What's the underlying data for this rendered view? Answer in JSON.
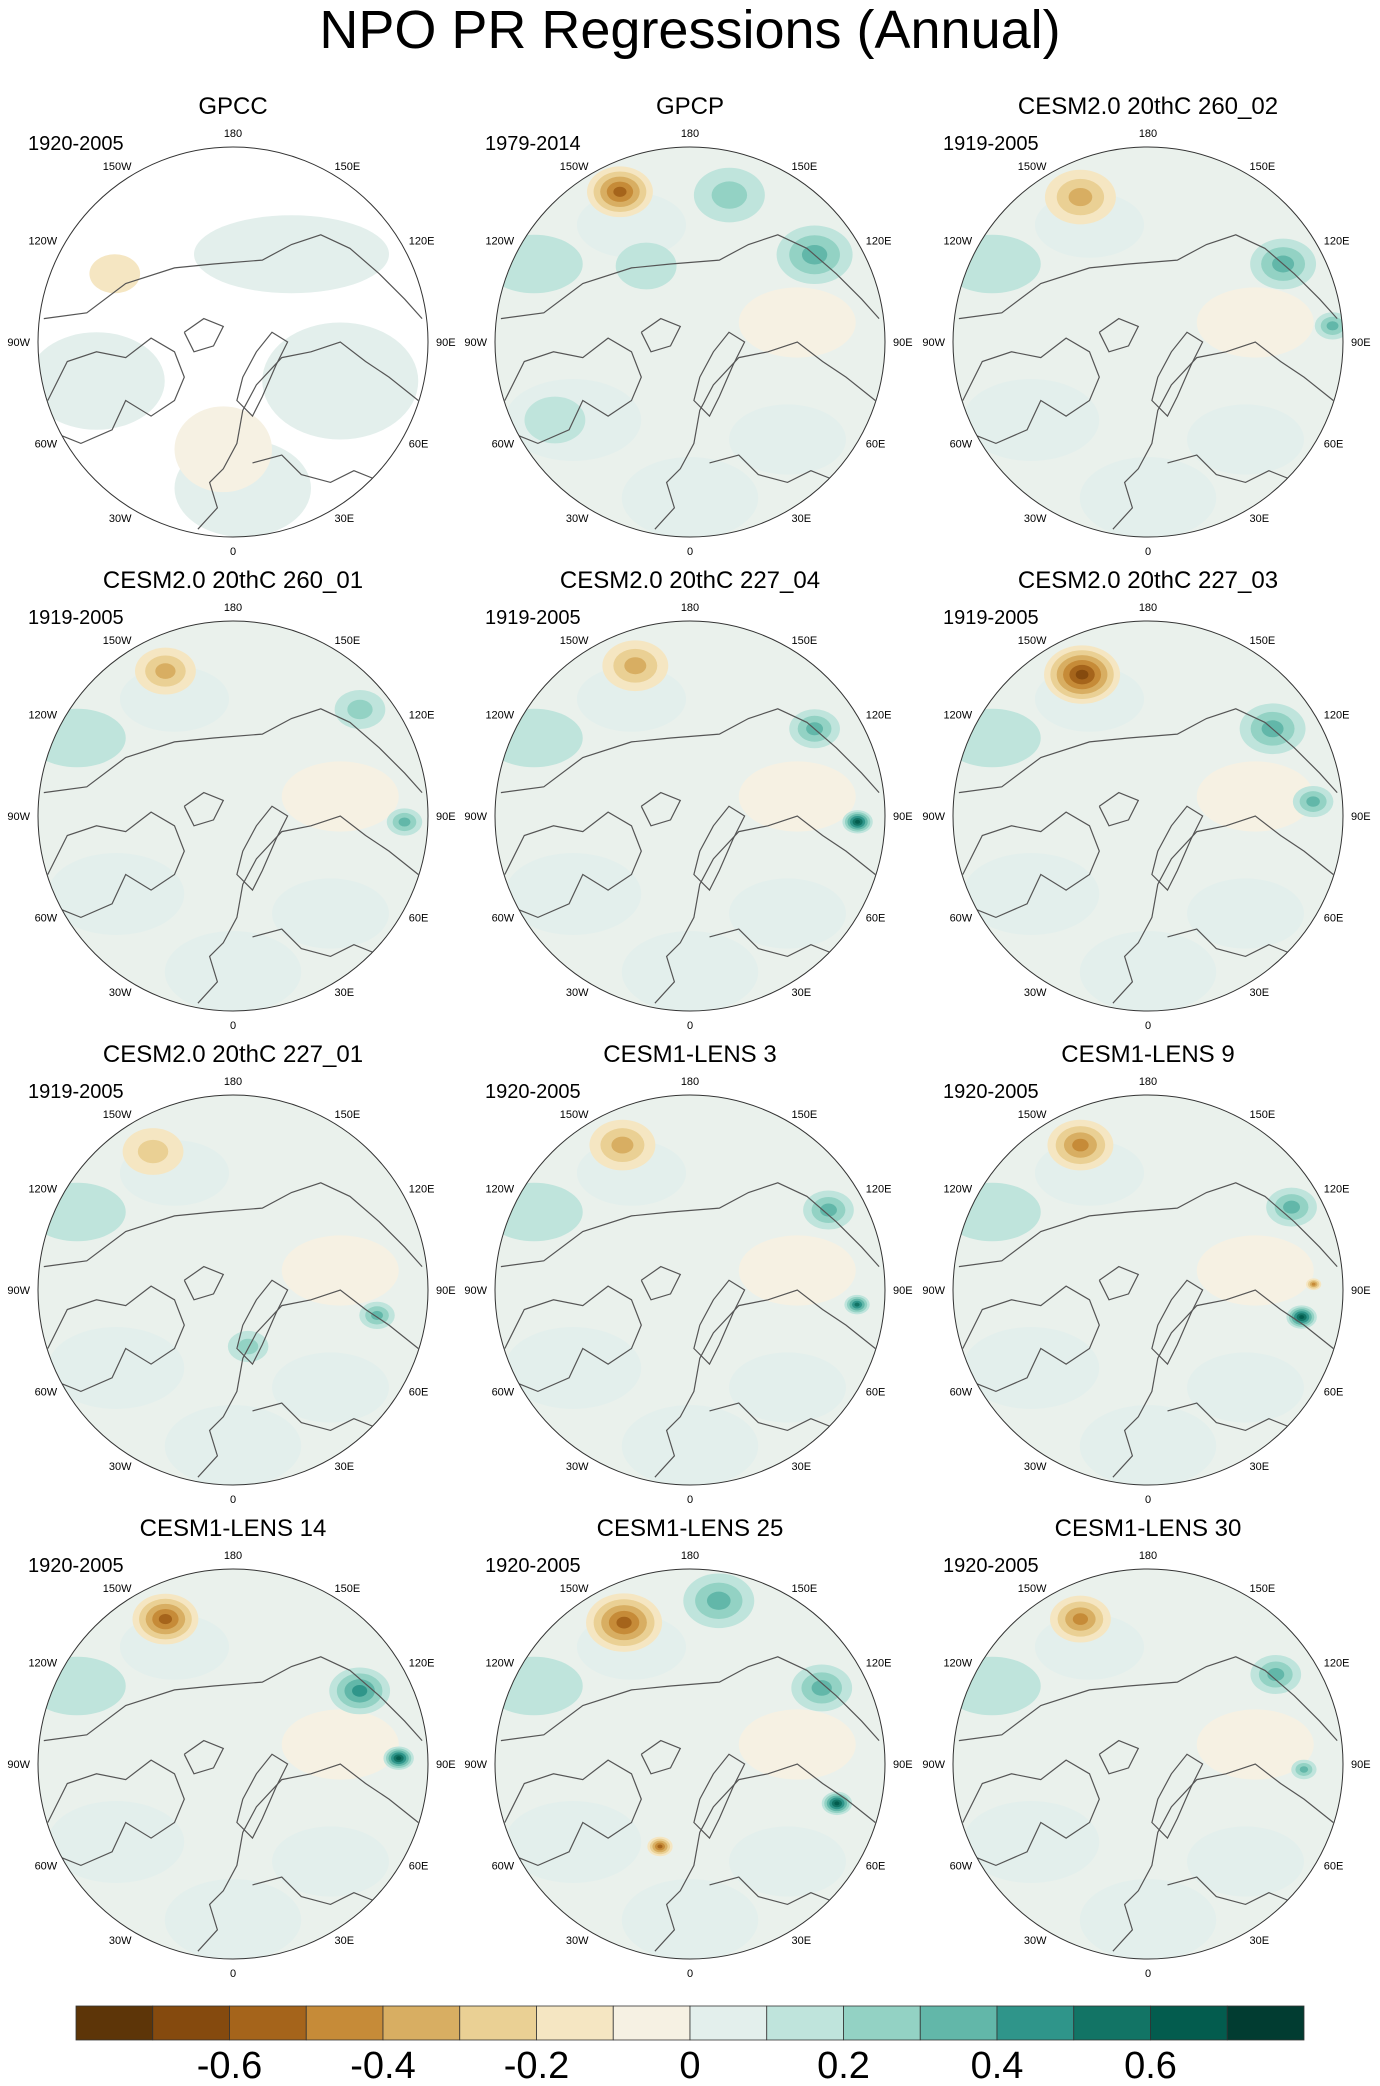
{
  "figure": {
    "title": "NPO PR Regressions (Annual)"
  },
  "longitude_labels": [
    "180",
    "150E",
    "120E",
    "90E",
    "60E",
    "30E",
    "0",
    "30W",
    "60W",
    "90W",
    "120W",
    "150W"
  ],
  "chart_data": {
    "type": "polar-contour-map-grid",
    "variable": "PR regression on NPO (annual)",
    "projection": "north polar stereographic",
    "panels": [
      {
        "title": "GPCC",
        "period": "1920-2005",
        "land_only": true,
        "features": [
          {
            "kind": "dry",
            "lon": -120,
            "r": 0.7,
            "amp": 0.05,
            "size": 0.1
          }
        ]
      },
      {
        "title": "GPCP",
        "period": "1979-2014",
        "features": [
          {
            "kind": "dry",
            "lon": -155,
            "r": 0.85,
            "amp": 0.45,
            "size": 0.13
          },
          {
            "kind": "wet",
            "lon": 125,
            "r": 0.78,
            "amp": 0.35,
            "size": 0.15
          },
          {
            "kind": "wet",
            "lon": 165,
            "r": 0.78,
            "amp": 0.2,
            "size": 0.14
          },
          {
            "kind": "wet",
            "lon": -150,
            "r": 0.45,
            "amp": 0.15,
            "size": 0.12
          },
          {
            "kind": "wet",
            "lon": -60,
            "r": 0.8,
            "amp": 0.15,
            "size": 0.12
          }
        ]
      },
      {
        "title": "CESM2.0 20thC 260_02",
        "period": "1919-2005",
        "features": [
          {
            "kind": "dry",
            "lon": -155,
            "r": 0.82,
            "amp": 0.35,
            "size": 0.14
          },
          {
            "kind": "wet",
            "lon": 120,
            "r": 0.8,
            "amp": 0.25,
            "size": 0.13
          },
          {
            "kind": "wet",
            "lon": 95,
            "r": 0.95,
            "amp": 0.3,
            "size": 0.07
          }
        ]
      },
      {
        "title": "CESM2.0 20thC 260_01",
        "period": "1919-2005",
        "features": [
          {
            "kind": "dry",
            "lon": -155,
            "r": 0.82,
            "amp": 0.25,
            "size": 0.12
          },
          {
            "kind": "wet",
            "lon": 130,
            "r": 0.85,
            "amp": 0.2,
            "size": 0.1
          },
          {
            "kind": "wet",
            "lon": 88,
            "r": 0.88,
            "amp": 0.3,
            "size": 0.07
          }
        ]
      },
      {
        "title": "CESM2.0 20thC 227_04",
        "period": "1919-2005",
        "features": [
          {
            "kind": "dry",
            "lon": -160,
            "r": 0.82,
            "amp": 0.25,
            "size": 0.13
          },
          {
            "kind": "wet",
            "lon": 125,
            "r": 0.78,
            "amp": 0.3,
            "size": 0.1
          },
          {
            "kind": "wet",
            "lon": 88,
            "r": 0.86,
            "amp": 0.6,
            "size": 0.06
          }
        ]
      },
      {
        "title": "CESM2.0 20thC 227_03",
        "period": "1919-2005",
        "features": [
          {
            "kind": "dry",
            "lon": -155,
            "r": 0.8,
            "amp": 0.55,
            "size": 0.15
          },
          {
            "kind": "wet",
            "lon": 125,
            "r": 0.78,
            "amp": 0.3,
            "size": 0.13
          },
          {
            "kind": "wet",
            "lon": 95,
            "r": 0.85,
            "amp": 0.25,
            "size": 0.08
          }
        ]
      },
      {
        "title": "CESM2.0 20thC 227_01",
        "period": "1919-2005",
        "features": [
          {
            "kind": "dry",
            "lon": -150,
            "r": 0.82,
            "amp": 0.2,
            "size": 0.12
          },
          {
            "kind": "wet",
            "lon": 80,
            "r": 0.75,
            "amp": 0.3,
            "size": 0.07
          },
          {
            "kind": "wet",
            "lon": 15,
            "r": 0.3,
            "amp": 0.2,
            "size": 0.08
          }
        ]
      },
      {
        "title": "CESM1-LENS 3",
        "period": "1920-2005",
        "features": [
          {
            "kind": "dry",
            "lon": -155,
            "r": 0.82,
            "amp": 0.35,
            "size": 0.13
          },
          {
            "kind": "wet",
            "lon": 120,
            "r": 0.82,
            "amp": 0.25,
            "size": 0.1
          },
          {
            "kind": "wet",
            "lon": 85,
            "r": 0.86,
            "amp": 0.45,
            "size": 0.05
          }
        ]
      },
      {
        "title": "CESM1-LENS 9",
        "period": "1920-2005",
        "features": [
          {
            "kind": "dry",
            "lon": -155,
            "r": 0.82,
            "amp": 0.4,
            "size": 0.13
          },
          {
            "kind": "wet",
            "lon": 120,
            "r": 0.85,
            "amp": 0.3,
            "size": 0.1
          },
          {
            "kind": "wet",
            "lon": 80,
            "r": 0.8,
            "amp": 0.55,
            "size": 0.06
          },
          {
            "kind": "dry",
            "lon": 92,
            "r": 0.85,
            "amp": 0.4,
            "size": 0.03
          }
        ]
      },
      {
        "title": "CESM1-LENS 14",
        "period": "1920-2005",
        "features": [
          {
            "kind": "dry",
            "lon": -155,
            "r": 0.82,
            "amp": 0.45,
            "size": 0.13
          },
          {
            "kind": "wet",
            "lon": 120,
            "r": 0.75,
            "amp": 0.4,
            "size": 0.12
          },
          {
            "kind": "wet",
            "lon": 92,
            "r": 0.85,
            "amp": 0.6,
            "size": 0.06
          }
        ]
      },
      {
        "title": "CESM1-LENS 25",
        "period": "1920-2005",
        "features": [
          {
            "kind": "dry",
            "lon": -155,
            "r": 0.8,
            "amp": 0.45,
            "size": 0.15
          },
          {
            "kind": "wet",
            "lon": 170,
            "r": 0.85,
            "amp": 0.3,
            "size": 0.14
          },
          {
            "kind": "wet",
            "lon": 120,
            "r": 0.78,
            "amp": 0.3,
            "size": 0.12
          },
          {
            "kind": "wet",
            "lon": 75,
            "r": 0.78,
            "amp": 0.6,
            "size": 0.06
          },
          {
            "kind": "dry",
            "lon": -20,
            "r": 0.45,
            "amp": 0.5,
            "size": 0.05
          }
        ]
      },
      {
        "title": "CESM1-LENS 30",
        "period": "1920-2005",
        "features": [
          {
            "kind": "dry",
            "lon": -155,
            "r": 0.82,
            "amp": 0.4,
            "size": 0.12
          },
          {
            "kind": "wet",
            "lon": 125,
            "r": 0.8,
            "amp": 0.25,
            "size": 0.1
          },
          {
            "kind": "wet",
            "lon": 88,
            "r": 0.8,
            "amp": 0.35,
            "size": 0.05
          }
        ]
      }
    ],
    "colorbar": {
      "levels": [
        -0.7,
        -0.6,
        -0.5,
        -0.4,
        -0.3,
        -0.2,
        -0.1,
        0,
        0.1,
        0.2,
        0.3,
        0.4,
        0.5,
        0.6,
        0.7
      ],
      "colors": [
        "#5d3508",
        "#854a0e",
        "#a5641b",
        "#c68b38",
        "#d8ae62",
        "#ead094",
        "#f5e6c2",
        "#f6f1e3",
        "#e3efec",
        "#bfe4dc",
        "#93d2c4",
        "#62b7a9",
        "#2f958a",
        "#127465",
        "#035c4e",
        "#013c31"
      ],
      "tick_labels": [
        "-0.6",
        "-0.4",
        "-0.2",
        "0",
        "0.2",
        "0.4",
        "0.6"
      ],
      "tick_values": [
        -0.6,
        -0.4,
        -0.2,
        0,
        0.2,
        0.4,
        0.6
      ]
    }
  }
}
